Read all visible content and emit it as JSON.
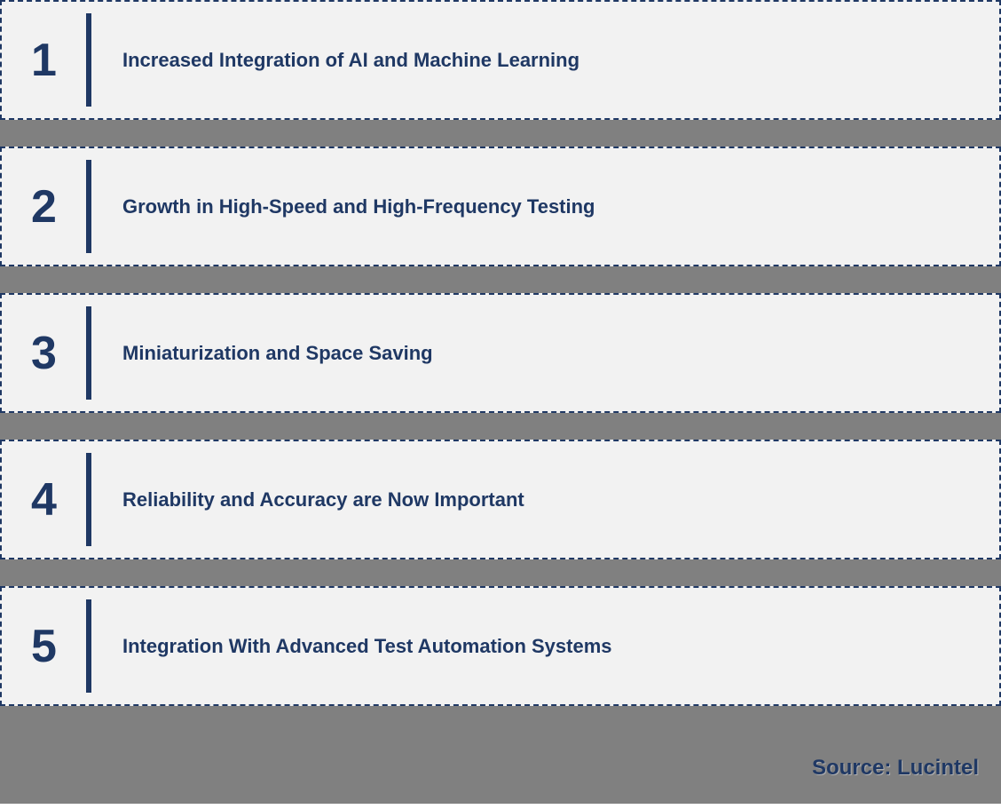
{
  "items": [
    {
      "number": "1",
      "label": "Increased Integration of AI and Machine Learning"
    },
    {
      "number": "2",
      "label": "Growth in High-Speed and High-Frequency Testing"
    },
    {
      "number": "3",
      "label": "Miniaturization and Space Saving"
    },
    {
      "number": "4",
      "label": "Reliability and Accuracy are Now Important"
    },
    {
      "number": "5",
      "label": "Integration With Advanced Test Automation Systems"
    }
  ],
  "source": "Source: Lucintel",
  "style": {
    "item_height": 135,
    "gap_height": 30,
    "number_fontsize": 52,
    "label_fontsize": 22,
    "source_fontsize": 24,
    "text_color": "#1f3864",
    "border_color": "#1f3864",
    "item_bg": "#f2f2f2",
    "gap_bg": "#808080",
    "divider_color": "#1f3864",
    "divider_width": 6,
    "divider_height": 105,
    "border_style": "dashed",
    "border_width": 2
  }
}
